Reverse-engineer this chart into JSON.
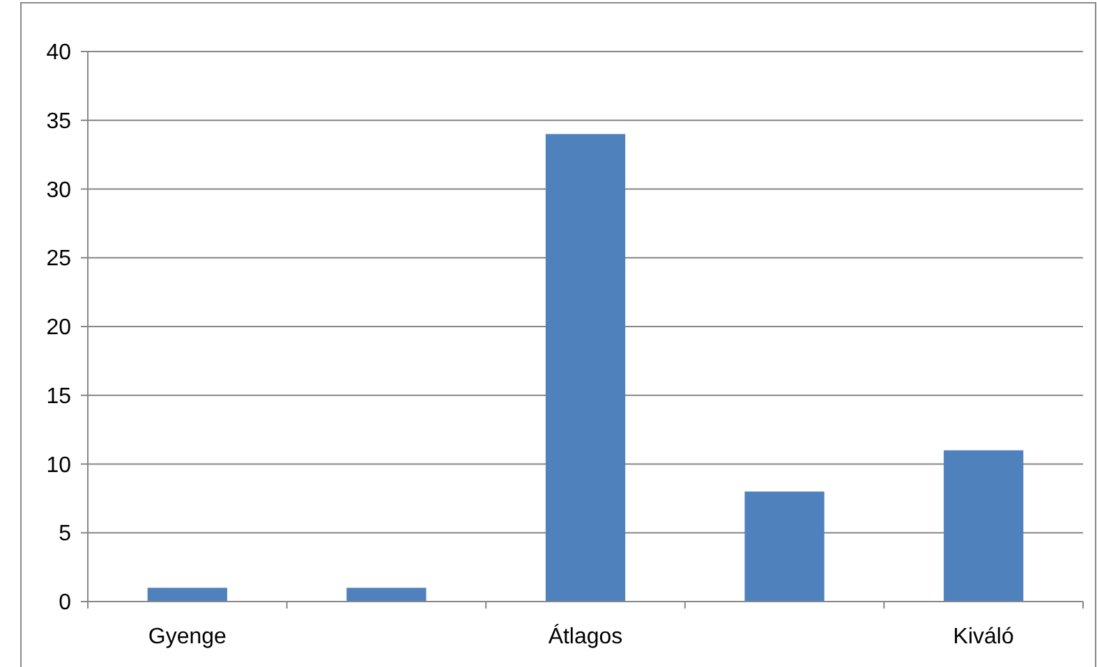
{
  "chart_data": {
    "type": "bar",
    "categories": [
      "Gyenge",
      null,
      "Átlagos",
      null,
      "Kiváló"
    ],
    "values": [
      1,
      1,
      34,
      8,
      11
    ],
    "color": "#4f81bd",
    "ylim": [
      0,
      40
    ],
    "yticks": [
      0,
      5,
      10,
      15,
      20,
      25,
      30,
      35,
      40
    ],
    "grid": "y"
  }
}
